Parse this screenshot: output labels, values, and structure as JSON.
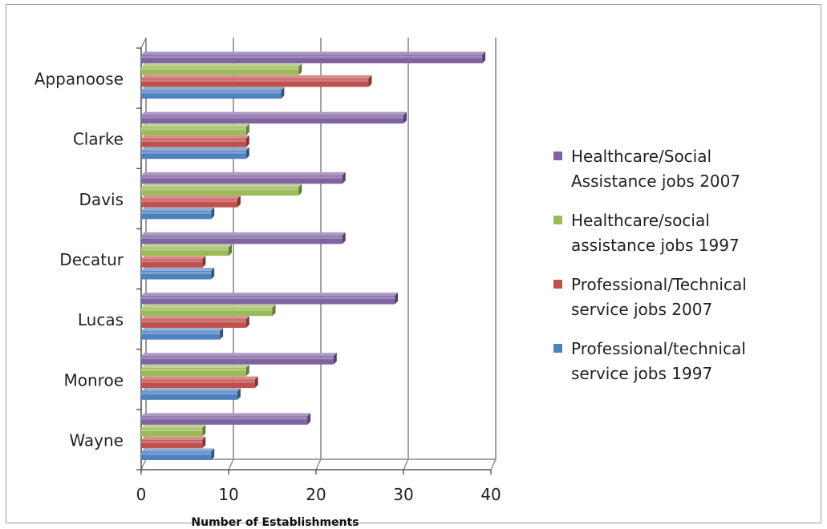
{
  "chart_data": {
    "type": "bar",
    "orientation": "horizontal",
    "style": "3d-clustered",
    "title": "",
    "xlabel": "Number of Establishments",
    "ylabel": "",
    "xlim": [
      0,
      40
    ],
    "xticks": [
      0,
      10,
      20,
      30,
      40
    ],
    "grid": "vertical-major",
    "legend_position": "right",
    "categories": [
      "Appanoose",
      "Clarke",
      "Davis",
      "Decatur",
      "Lucas",
      "Monroe",
      "Wayne"
    ],
    "series": [
      {
        "name": "Healthcare/Social Assistance jobs 2007",
        "color": "#8064a2",
        "values": [
          39,
          30,
          23,
          23,
          29,
          22,
          19
        ]
      },
      {
        "name": "Healthcare/social assistance jobs 1997",
        "color": "#9bbb59",
        "values": [
          18,
          12,
          18,
          10,
          15,
          12,
          7
        ]
      },
      {
        "name": "Professional/Technical service jobs 2007",
        "color": "#c0504d",
        "values": [
          26,
          12,
          11,
          7,
          12,
          13,
          7
        ]
      },
      {
        "name": "Professional/technical service jobs 1997",
        "color": "#4f81bd",
        "values": [
          16,
          12,
          8,
          8,
          9,
          11,
          8
        ]
      }
    ]
  }
}
